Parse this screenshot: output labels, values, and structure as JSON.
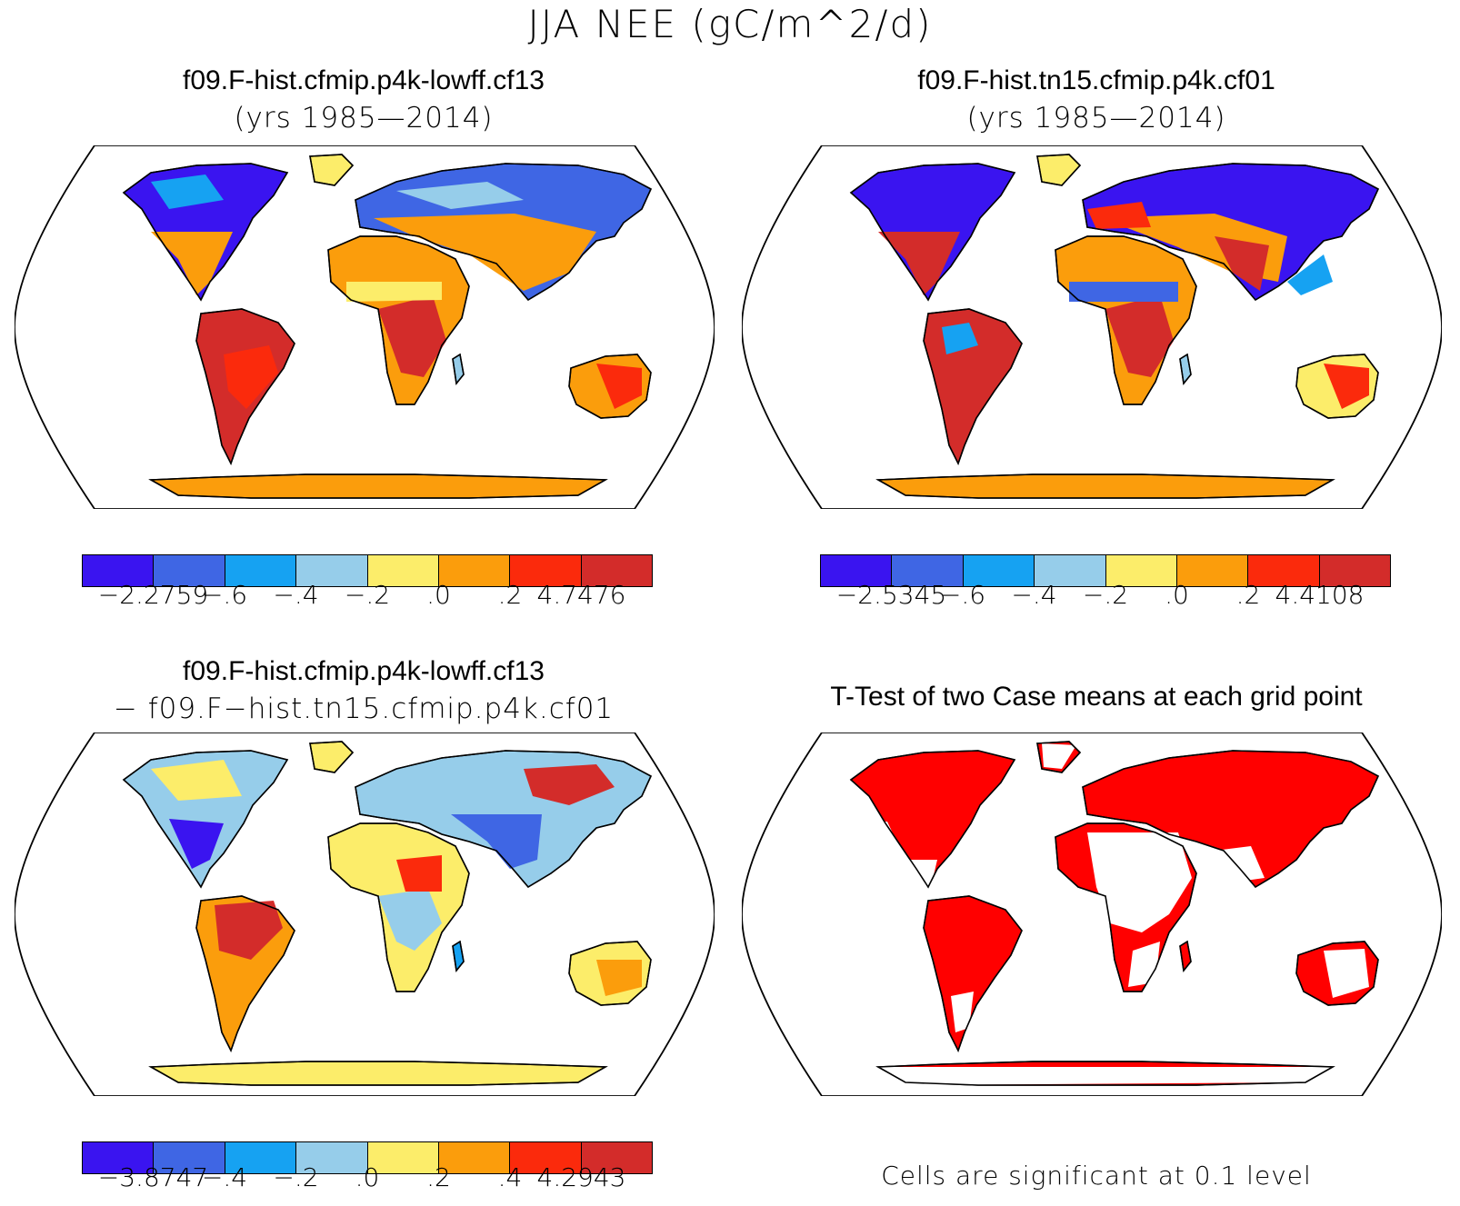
{
  "title": "JJA NEE (gC/m^2/d)",
  "colors": {
    "c1": "#3a14f0",
    "c2": "#3f66e4",
    "c3": "#16a2f2",
    "c4": "#96cdea",
    "c5": "#fced6a",
    "c6": "#fb9d0c",
    "c7": "#fb2a0c",
    "c8": "#d32c2a",
    "sig": "#ff0000"
  },
  "panels": {
    "top_left": {
      "title": "f09.F-hist.cfmip.p4k-lowff.cf13",
      "subtitle": "(yrs 1985—2014)",
      "colorbar_labels": [
        "−2.2759",
        "−.6",
        "−.4",
        "−.2",
        ".0",
        ".2",
        "4.7476"
      ]
    },
    "top_right": {
      "title": "f09.F-hist.tn15.cfmip.p4k.cf01",
      "subtitle": "(yrs 1985—2014)",
      "colorbar_labels": [
        "−2.5345",
        "−.6",
        "−.4",
        "−.2",
        ".0",
        ".2",
        "4.4108"
      ]
    },
    "bottom_left": {
      "title": "f09.F-hist.cfmip.p4k-lowff.cf13",
      "subtitle": "− f09.F−hist.tn15.cfmip.p4k.cf01",
      "colorbar_labels": [
        "−3.8747",
        "−.4",
        "−.2",
        ".0",
        ".2",
        ".4",
        "4.2943"
      ]
    },
    "bottom_right": {
      "title": "T-Test of two Case means at each grid point",
      "note": "Cells are significant at 0.1 level"
    }
  }
}
